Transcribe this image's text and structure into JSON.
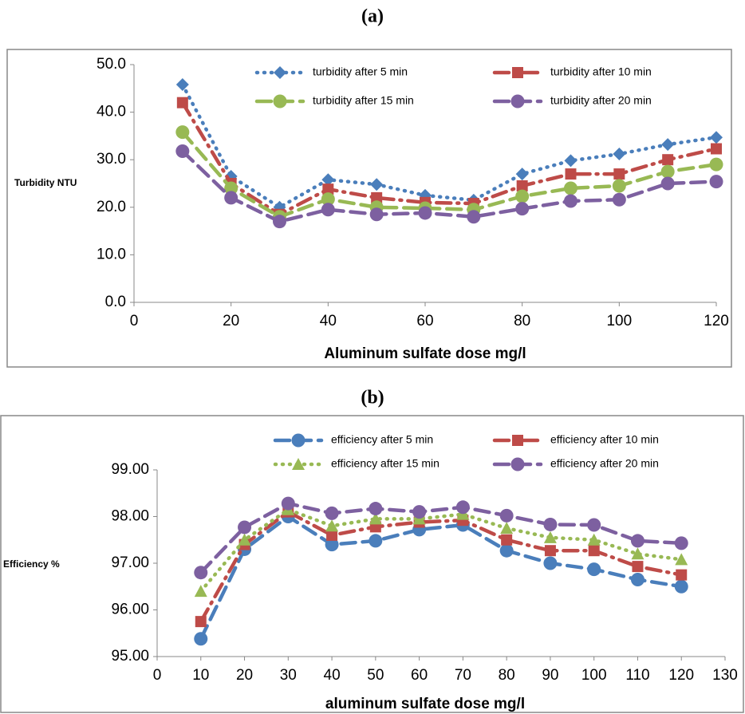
{
  "chart_data": [
    {
      "type": "line",
      "title": "(a)",
      "xlabel": "Aluminum sulfate dose mg/l",
      "ylabel": "Turbidity NTU",
      "x": [
        10,
        20,
        30,
        40,
        50,
        60,
        70,
        80,
        90,
        100,
        110,
        120
      ],
      "xlim": [
        0,
        120
      ],
      "xticks": [
        0,
        20,
        40,
        60,
        80,
        100,
        120
      ],
      "ylim": [
        0,
        50
      ],
      "yticks": [
        {
          "value": 0,
          "label": "0.0"
        },
        {
          "value": 10,
          "label": "10.0"
        },
        {
          "value": 20,
          "label": "20.0"
        },
        {
          "value": 30,
          "label": "30.0"
        },
        {
          "value": 40,
          "label": "40.0"
        },
        {
          "value": 50,
          "label": "50.0"
        }
      ],
      "grid": false,
      "legend": "top",
      "series": [
        {
          "name": "turbidity after 5 min",
          "color": "#4a7ebb",
          "marker": "diamond",
          "linestyle": "dotted",
          "values": [
            45.8,
            26.5,
            20.0,
            25.8,
            24.8,
            22.5,
            21.5,
            27.0,
            29.8,
            31.2,
            33.2,
            34.7
          ]
        },
        {
          "name": "turbidity after 10 min",
          "color": "#be4b48",
          "marker": "square",
          "linestyle": "dashdot",
          "values": [
            42.0,
            25.0,
            18.5,
            23.8,
            22.0,
            21.0,
            20.8,
            24.5,
            27.0,
            27.0,
            30.0,
            32.3
          ]
        },
        {
          "name": "turbidity after 15 min",
          "color": "#98b954",
          "marker": "circle",
          "linestyle": "dashed",
          "values": [
            35.8,
            24.0,
            18.0,
            21.7,
            20.0,
            19.8,
            19.5,
            22.3,
            24.0,
            24.5,
            27.5,
            29.0
          ]
        },
        {
          "name": "turbidity after 20 min",
          "color": "#7d60a0",
          "marker": "circle",
          "linestyle": "dashed",
          "values": [
            31.8,
            22.0,
            17.0,
            19.5,
            18.5,
            18.8,
            18.0,
            19.7,
            21.3,
            21.6,
            25.0,
            25.4
          ]
        }
      ]
    },
    {
      "type": "line",
      "title": "(b)",
      "xlabel": "aluminum sulfate dose mg/l",
      "ylabel": "Efficiency %",
      "x": [
        10,
        20,
        30,
        40,
        50,
        60,
        70,
        80,
        90,
        100,
        110,
        120
      ],
      "xlim": [
        0,
        130
      ],
      "xticks": [
        0,
        10,
        20,
        30,
        40,
        50,
        60,
        70,
        80,
        90,
        100,
        110,
        120,
        130
      ],
      "ylim": [
        95,
        99
      ],
      "yticks": [
        {
          "value": 95,
          "label": "95.00"
        },
        {
          "value": 96,
          "label": "96.00"
        },
        {
          "value": 97,
          "label": "97.00"
        },
        {
          "value": 98,
          "label": "98.00"
        },
        {
          "value": 99,
          "label": "99.00"
        }
      ],
      "grid": false,
      "legend": "top",
      "series": [
        {
          "name": "efficiency after 5 min",
          "color": "#4a7ebb",
          "marker": "circle",
          "linestyle": "dashed",
          "values": [
            95.38,
            97.3,
            98.0,
            97.4,
            97.48,
            97.72,
            97.82,
            97.27,
            97.0,
            96.87,
            96.65,
            96.5
          ]
        },
        {
          "name": "efficiency after 10 min",
          "color": "#be4b48",
          "marker": "square",
          "linestyle": "dashdot",
          "values": [
            95.75,
            97.4,
            98.1,
            97.6,
            97.78,
            97.88,
            97.92,
            97.5,
            97.27,
            97.27,
            96.93,
            96.75
          ]
        },
        {
          "name": "efficiency after 15 min",
          "color": "#98b954",
          "marker": "triangle",
          "linestyle": "dotted",
          "values": [
            96.4,
            97.5,
            98.15,
            97.8,
            97.95,
            97.95,
            98.05,
            97.75,
            97.55,
            97.5,
            97.2,
            97.08
          ]
        },
        {
          "name": "efficiency after 20 min",
          "color": "#7d60a0",
          "marker": "circle",
          "linestyle": "dashed",
          "values": [
            96.8,
            97.77,
            98.28,
            98.07,
            98.17,
            98.1,
            98.2,
            98.02,
            97.83,
            97.82,
            97.48,
            97.43
          ]
        }
      ]
    }
  ]
}
